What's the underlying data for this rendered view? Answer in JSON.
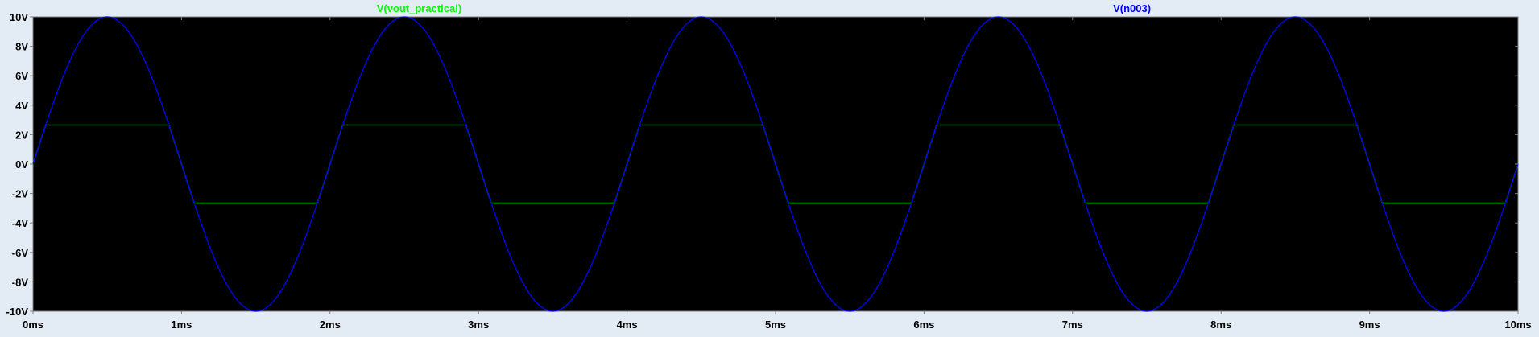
{
  "chart_data": {
    "type": "line",
    "xlabel": "",
    "ylabel": "",
    "xlim": [
      0,
      10
    ],
    "ylim": [
      -10,
      10
    ],
    "x_ticks": [
      0,
      1,
      2,
      3,
      4,
      5,
      6,
      7,
      8,
      9,
      10
    ],
    "x_tick_labels": [
      "0ms",
      "1ms",
      "2ms",
      "3ms",
      "4ms",
      "5ms",
      "6ms",
      "7ms",
      "8ms",
      "9ms",
      "10ms"
    ],
    "y_ticks": [
      10,
      8,
      6,
      4,
      2,
      0,
      -2,
      -4,
      -6,
      -8,
      -10
    ],
    "y_tick_labels": [
      "10V",
      "8V",
      "6V",
      "4V",
      "2V",
      "0V",
      "-2V",
      "-4V",
      "-6V",
      "-8V",
      "-10V"
    ],
    "grid": false,
    "legend_placement": "top",
    "background_color": "#000000",
    "series": [
      {
        "name": "V(vout_practical)",
        "color": "#00ff00",
        "waveform": "clipped-sine",
        "amplitude": 10,
        "clip_level": 2.65,
        "period": 2,
        "phase": 0
      },
      {
        "name": "V(n003)",
        "color": "#0000ff",
        "waveform": "sine",
        "amplitude": 10,
        "period": 2,
        "phase": 0
      }
    ]
  }
}
